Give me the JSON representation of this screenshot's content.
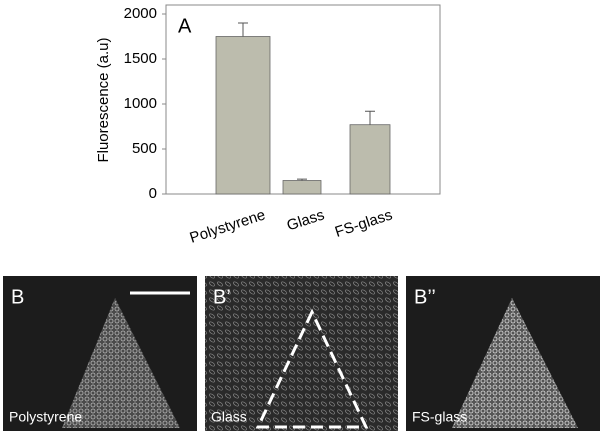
{
  "chart_data": {
    "type": "bar",
    "panel_label": "A",
    "ylabel": "Fluorescence (a.u)",
    "categories": [
      "Polystyrene",
      "Glass",
      "FS-glass"
    ],
    "values": [
      1750,
      150,
      770
    ],
    "errors": [
      150,
      15,
      150
    ],
    "color": "#bcbcad",
    "ylim": [
      0,
      2000
    ],
    "yticks": [
      0,
      500,
      1000,
      1500,
      2000
    ],
    "grid": false
  },
  "panels": [
    {
      "label": "B",
      "caption": "Polystyrene"
    },
    {
      "label": "B’",
      "caption": "Glass"
    },
    {
      "label": "B’’",
      "caption": "FS-glass"
    }
  ]
}
